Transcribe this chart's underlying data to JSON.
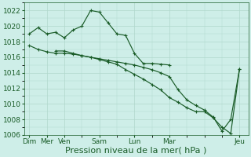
{
  "xlabel": "Pression niveau de la mer( hPa )",
  "ylim": [
    1006,
    1023
  ],
  "yticks": [
    1006,
    1008,
    1010,
    1012,
    1014,
    1016,
    1018,
    1020,
    1022
  ],
  "bg_color": "#ceeee8",
  "grid_color": "#b0d8cc",
  "line_color": "#1a5c28",
  "font_color": "#1a5c28",
  "day_positions": [
    0,
    1,
    2,
    4,
    6,
    8,
    12
  ],
  "day_labels": [
    "Dim",
    "Mer",
    "Ven",
    "Sam",
    "Lun",
    "Mar",
    "Jeu"
  ],
  "xlim": [
    -0.3,
    12.5
  ],
  "series1_x": [
    0,
    0.5,
    1,
    1.5,
    2,
    2.5,
    3,
    3.5,
    4,
    4.5,
    5,
    5.5,
    6,
    6.5,
    7,
    7.5,
    8
  ],
  "series1_y": [
    1019.0,
    1019.8,
    1019.0,
    1019.2,
    1018.5,
    1019.5,
    1020.0,
    1022.0,
    1021.8,
    1020.4,
    1019.0,
    1018.8,
    1016.5,
    1015.2,
    1015.2,
    1015.1,
    1015.0
  ],
  "series2_x": [
    0,
    0.5,
    1,
    1.5,
    2,
    2.5,
    3,
    3.5,
    4,
    4.5,
    5,
    5.5,
    6,
    6.5,
    7,
    7.5,
    8,
    8.5,
    9,
    9.5,
    10,
    10.5,
    11,
    11.5,
    12
  ],
  "series2_y": [
    1017.5,
    1017.0,
    1016.7,
    1016.5,
    1016.5,
    1016.4,
    1016.2,
    1016.0,
    1015.8,
    1015.6,
    1015.4,
    1015.2,
    1015.0,
    1014.7,
    1014.4,
    1014.0,
    1013.5,
    1011.8,
    1010.5,
    1009.8,
    1009.2,
    1008.3,
    1006.5,
    1008.0,
    1014.5
  ],
  "series3_x": [
    1.5,
    2,
    2.5,
    3,
    3.5,
    4,
    4.5,
    5,
    5.5,
    6,
    6.5,
    7,
    7.5,
    8,
    8.5,
    9,
    9.5,
    10,
    10.5,
    11,
    11.5,
    12
  ],
  "series3_y": [
    1016.8,
    1016.8,
    1016.5,
    1016.2,
    1016.0,
    1015.7,
    1015.4,
    1015.1,
    1014.4,
    1013.8,
    1013.2,
    1012.5,
    1011.8,
    1010.8,
    1010.2,
    1009.5,
    1009.0,
    1009.0,
    1008.2,
    1007.0,
    1006.2,
    1014.5
  ],
  "tick_fontsize": 6.5,
  "xlabel_fontsize": 8
}
